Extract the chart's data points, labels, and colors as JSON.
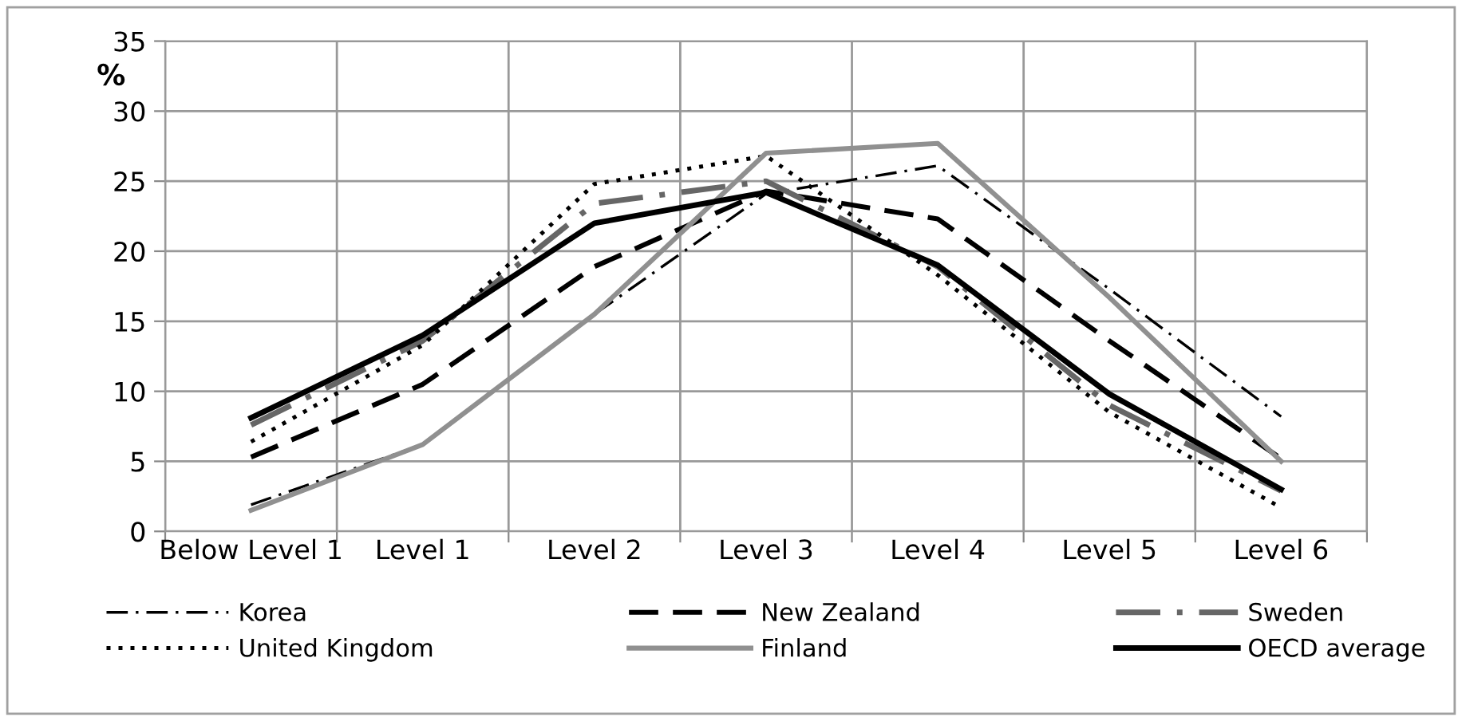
{
  "chart_data": {
    "type": "line",
    "ylabel": "%",
    "categories": [
      "Below Level 1",
      "Level 1",
      "Level 2",
      "Level 3",
      "Level 4",
      "Level 5",
      "Level 6"
    ],
    "ylim": [
      0,
      35
    ],
    "yticks": [
      0,
      5,
      10,
      15,
      20,
      25,
      30,
      35
    ],
    "grid": true,
    "legend": "bottom",
    "marker": "none",
    "series": [
      {
        "name": "Korea",
        "color": "#000000",
        "line_style": "dashdot",
        "values": [
          1.9,
          6.2,
          15.5,
          24.1,
          26.1,
          17.3,
          8.2
        ]
      },
      {
        "name": "New Zealand",
        "color": "#000000",
        "line_style": "dashed",
        "values": [
          5.3,
          10.5,
          18.9,
          24.3,
          22.3,
          13.6,
          5.2
        ]
      },
      {
        "name": "Sweden",
        "color": "#666666",
        "line_style": "dashdot",
        "values": [
          7.6,
          13.6,
          23.4,
          25.0,
          18.9,
          9.0,
          2.9
        ]
      },
      {
        "name": "United Kingdom",
        "color": "#000000",
        "line_style": "dotted",
        "values": [
          6.4,
          13.3,
          24.8,
          26.8,
          18.3,
          8.5,
          1.7
        ]
      },
      {
        "name": "Finland",
        "color": "#909090",
        "line_style": "solid",
        "values": [
          1.5,
          6.2,
          15.5,
          27.0,
          27.7,
          16.7,
          5.0
        ]
      },
      {
        "name": "OECD average",
        "color": "#000000",
        "line_style": "solid",
        "values": [
          8.1,
          14.0,
          22.0,
          24.2,
          19.0,
          9.8,
          3.0
        ]
      }
    ]
  }
}
